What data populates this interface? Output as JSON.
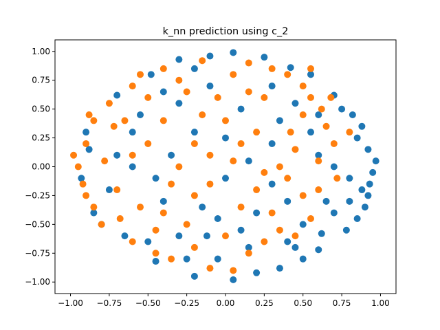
{
  "chart_data": {
    "type": "scatter",
    "title": "k_nn prediction using c_2",
    "xlabel": "",
    "ylabel": "",
    "xlim": [
      -1.1,
      1.1
    ],
    "ylim": [
      -1.1,
      1.1
    ],
    "grid": false,
    "x_ticks": [
      -1.0,
      -0.75,
      -0.5,
      -0.25,
      0.0,
      0.25,
      0.5,
      0.75,
      1.0
    ],
    "y_ticks": [
      -1.0,
      -0.75,
      -0.5,
      -0.25,
      0.0,
      0.25,
      0.5,
      0.75,
      1.0
    ],
    "x_tick_labels": [
      "−1.00",
      "−0.75",
      "−0.50",
      "−0.25",
      "0.00",
      "0.25",
      "0.50",
      "0.75",
      "1.00"
    ],
    "y_tick_labels": [
      "−1.00",
      "−0.75",
      "−0.50",
      "−0.25",
      "0.00",
      "0.25",
      "0.50",
      "0.75",
      "1.00"
    ],
    "series": [
      {
        "color": "#1f77b4",
        "points": [
          [
            0.05,
            0.99
          ],
          [
            -0.3,
            0.93
          ],
          [
            0.42,
            0.86
          ],
          [
            0.7,
            0.62
          ],
          [
            0.88,
            0.35
          ],
          [
            0.97,
            0.05
          ],
          [
            0.92,
            -0.25
          ],
          [
            0.85,
            -0.45
          ],
          [
            0.6,
            -0.72
          ],
          [
            0.35,
            -0.88
          ],
          [
            0.05,
            -0.98
          ],
          [
            -0.2,
            -0.95
          ],
          [
            -0.45,
            -0.82
          ],
          [
            -0.65,
            -0.6
          ],
          [
            -0.85,
            -0.4
          ],
          [
            -0.93,
            -0.1
          ],
          [
            -0.9,
            0.3
          ],
          [
            -0.7,
            0.62
          ],
          [
            -0.48,
            0.8
          ],
          [
            0.1,
            0.5
          ],
          [
            -0.2,
            0.3
          ],
          [
            0.3,
            0.2
          ],
          [
            -0.4,
            -0.3
          ],
          [
            0.2,
            -0.4
          ],
          [
            0.6,
            0.1
          ],
          [
            -0.6,
            0.0
          ],
          [
            0.0,
            -0.1
          ],
          [
            0.5,
            -0.5
          ],
          [
            -0.3,
            -0.6
          ],
          [
            0.8,
            -0.1
          ],
          [
            0.75,
            0.5
          ],
          [
            -0.1,
            0.7
          ],
          [
            0.15,
            -0.7
          ],
          [
            -0.55,
            0.45
          ],
          [
            0.45,
            0.55
          ],
          [
            -0.75,
            -0.2
          ],
          [
            0.3,
            -0.15
          ],
          [
            -0.15,
            -0.35
          ],
          [
            0.65,
            -0.3
          ],
          [
            -0.35,
            0.1
          ],
          [
            0.92,
            0.15
          ],
          [
            0.95,
            -0.05
          ],
          [
            0.9,
            -0.35
          ],
          [
            0.78,
            -0.55
          ],
          [
            0.5,
            -0.8
          ],
          [
            0.2,
            -0.92
          ],
          [
            -0.05,
            -0.8
          ],
          [
            0.55,
            0.8
          ],
          [
            0.25,
            0.95
          ],
          [
            -0.1,
            0.96
          ],
          [
            0.85,
            0.25
          ],
          [
            0.88,
            -0.2
          ],
          [
            0.7,
            -0.4
          ],
          [
            0.4,
            -0.65
          ],
          [
            0.1,
            -0.55
          ],
          [
            -0.25,
            -0.8
          ],
          [
            -0.5,
            -0.65
          ],
          [
            -0.8,
            -0.5
          ],
          [
            -0.88,
            0.15
          ],
          [
            -0.6,
            0.3
          ],
          [
            -0.3,
            0.55
          ],
          [
            0.0,
            0.25
          ],
          [
            0.35,
            0.4
          ],
          [
            0.55,
            0.3
          ],
          [
            -0.45,
            -0.1
          ],
          [
            0.15,
            0.05
          ],
          [
            -0.05,
            -0.45
          ],
          [
            0.4,
            -0.3
          ],
          [
            -0.7,
            0.1
          ],
          [
            0.7,
            0.0
          ],
          [
            0.6,
            0.45
          ],
          [
            -0.2,
            0.85
          ],
          [
            0.3,
            0.7
          ],
          [
            -0.4,
            0.65
          ],
          [
            0.82,
            0.45
          ],
          [
            0.93,
            -0.15
          ],
          [
            0.8,
            -0.3
          ],
          [
            0.62,
            -0.58
          ],
          [
            0.45,
            -0.7
          ],
          [
            -0.12,
            -0.6
          ]
        ]
      },
      {
        "color": "#ff7f0e",
        "points": [
          [
            -0.95,
            0.0
          ],
          [
            -0.9,
            0.2
          ],
          [
            -0.85,
            0.4
          ],
          [
            -0.75,
            0.55
          ],
          [
            -0.6,
            0.7
          ],
          [
            -0.4,
            0.85
          ],
          [
            -0.15,
            0.92
          ],
          [
            0.15,
            0.9
          ],
          [
            0.4,
            0.8
          ],
          [
            0.55,
            0.6
          ],
          [
            0.65,
            0.35
          ],
          [
            0.6,
            0.05
          ],
          [
            0.5,
            -0.25
          ],
          [
            0.35,
            -0.55
          ],
          [
            0.15,
            -0.75
          ],
          [
            -0.1,
            -0.88
          ],
          [
            -0.35,
            -0.8
          ],
          [
            -0.6,
            -0.65
          ],
          [
            -0.8,
            -0.5
          ],
          [
            -0.9,
            -0.25
          ],
          [
            -0.5,
            0.2
          ],
          [
            -0.3,
            0.0
          ],
          [
            0.0,
            0.4
          ],
          [
            0.2,
            -0.2
          ],
          [
            -0.2,
            -0.25
          ],
          [
            0.45,
            0.15
          ],
          [
            -0.55,
            -0.35
          ],
          [
            0.25,
            0.6
          ],
          [
            -0.1,
            0.1
          ],
          [
            0.0,
            -0.6
          ],
          [
            0.3,
            -0.4
          ],
          [
            -0.65,
            0.4
          ],
          [
            -0.4,
            0.4
          ],
          [
            0.1,
            0.2
          ],
          [
            -0.25,
            0.65
          ],
          [
            0.5,
            0.45
          ],
          [
            0.7,
            0.2
          ],
          [
            0.4,
            -0.1
          ],
          [
            -0.45,
            -0.55
          ],
          [
            -0.7,
            -0.2
          ],
          [
            -0.98,
            0.1
          ],
          [
            -0.92,
            -0.15
          ],
          [
            -0.85,
            -0.35
          ],
          [
            -0.72,
            0.35
          ],
          [
            -0.5,
            0.6
          ],
          [
            -0.3,
            0.75
          ],
          [
            0.05,
            0.8
          ],
          [
            0.3,
            0.85
          ],
          [
            0.5,
            0.7
          ],
          [
            0.62,
            0.5
          ],
          [
            0.8,
            0.3
          ],
          [
            0.72,
            -0.1
          ],
          [
            0.55,
            -0.45
          ],
          [
            0.25,
            -0.65
          ],
          [
            0.05,
            -0.9
          ],
          [
            -0.2,
            -0.7
          ],
          [
            -0.45,
            -0.75
          ],
          [
            -0.68,
            -0.45
          ],
          [
            -0.35,
            -0.15
          ],
          [
            -0.15,
            0.45
          ],
          [
            0.2,
            0.3
          ],
          [
            0.35,
            0.0
          ],
          [
            -0.6,
            0.1
          ],
          [
            0.1,
            -0.35
          ],
          [
            -0.05,
            0.6
          ],
          [
            0.45,
            -0.6
          ],
          [
            -0.25,
            -0.5
          ],
          [
            0.6,
            -0.2
          ],
          [
            -0.78,
            0.05
          ],
          [
            0.15,
            0.65
          ],
          [
            -0.55,
            0.8
          ],
          [
            0.42,
            0.3
          ],
          [
            -0.1,
            -0.15
          ],
          [
            0.25,
            -0.05
          ],
          [
            -0.4,
            -0.4
          ],
          [
            0.05,
            0.05
          ],
          [
            -0.88,
            0.45
          ],
          [
            0.68,
            0.6
          ],
          [
            0.55,
            0.85
          ],
          [
            -0.2,
            0.2
          ]
        ]
      }
    ]
  }
}
